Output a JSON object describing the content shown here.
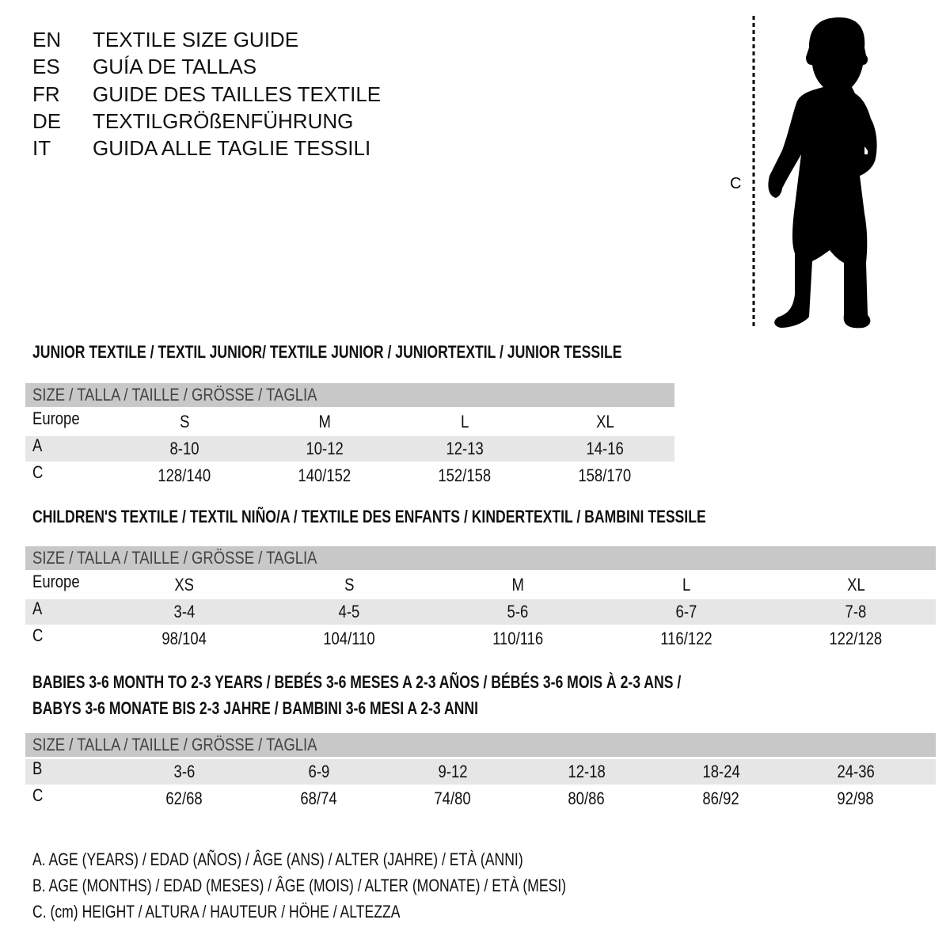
{
  "languages": [
    {
      "code": "EN",
      "title": "TEXTILE SIZE GUIDE"
    },
    {
      "code": "ES",
      "title": "GUÍA DE TALLAS"
    },
    {
      "code": "FR",
      "title": "GUIDE DES TAILLES TEXTILE"
    },
    {
      "code": "DE",
      "title": "TEXTILGRÖßENFÜHRUNG"
    },
    {
      "code": "IT",
      "title": "GUIDA ALLE TAGLIE TESSILI"
    }
  ],
  "figure": {
    "measure_label": "C",
    "icon": "child-silhouette-icon"
  },
  "sections": [
    {
      "heading": [
        "JUNIOR TEXTILE / TEXTIL JUNIOR/ TEXTILE JUNIOR / JUNIORTEXTIL / JUNIOR TESSILE"
      ],
      "table": {
        "header": "SIZE / TALLA / TAILLE / GRÖSSE / TAGLIA",
        "rows": [
          {
            "label": "Europe",
            "values": [
              "S",
              "M",
              "L",
              "XL"
            ]
          },
          {
            "label": "A",
            "values": [
              "8-10",
              "10-12",
              "12-13",
              "14-16"
            ]
          },
          {
            "label": "C",
            "values": [
              "128/140",
              "140/152",
              "152/158",
              "158/170"
            ]
          }
        ]
      }
    },
    {
      "heading": [
        "CHILDREN'S TEXTILE / TEXTIL NIÑO/A / TEXTILE DES ENFANTS / KINDERTEXTIL / BAMBINI TESSILE"
      ],
      "table": {
        "header": "SIZE / TALLA / TAILLE / GRÖSSE / TAGLIA",
        "rows": [
          {
            "label": "Europe",
            "values": [
              "XS",
              "S",
              "M",
              "L",
              "XL"
            ]
          },
          {
            "label": "A",
            "values": [
              "3-4",
              "4-5",
              "5-6",
              "6-7",
              "7-8"
            ]
          },
          {
            "label": "C",
            "values": [
              "98/104",
              "104/110",
              "110/116",
              "116/122",
              "122/128"
            ]
          }
        ]
      }
    },
    {
      "heading": [
        "BABIES 3-6 MONTH TO 2-3 YEARS / BEBÉS 3-6 MESES A 2-3 AÑOS / BÉBÉS 3-6 MOIS À 2-3 ANS /",
        "BABYS 3-6 MONATE BIS 2-3 JAHRE / BAMBINI 3-6 MESI A 2-3 ANNI"
      ],
      "table": {
        "header": "SIZE / TALLA / TAILLE / GRÖSSE / TAGLIA",
        "rows": [
          {
            "label": "B",
            "values": [
              "3-6",
              "6-9",
              "9-12",
              "12-18",
              "18-24",
              "24-36"
            ]
          },
          {
            "label": "C",
            "values": [
              "62/68",
              "68/74",
              "74/80",
              "80/86",
              "86/92",
              "92/98"
            ]
          }
        ]
      }
    }
  ],
  "legend": [
    "A. AGE (YEARS) / EDAD (AÑOS) / ÂGE (ANS) / ALTER (JAHRE) / ETÀ (ANNI)",
    "B. AGE (MONTHS) / EDAD (MESES) / ÂGE (MOIS) / ALTER (MONATE) / ETÀ (MESI)",
    "C. (cm) HEIGHT / ALTURA / HAUTEUR / HÖHE / ALTEZZA"
  ],
  "colors": {
    "header_band": "#c8c8c8",
    "stripe": "#e6e6e6",
    "text": "#111111"
  }
}
